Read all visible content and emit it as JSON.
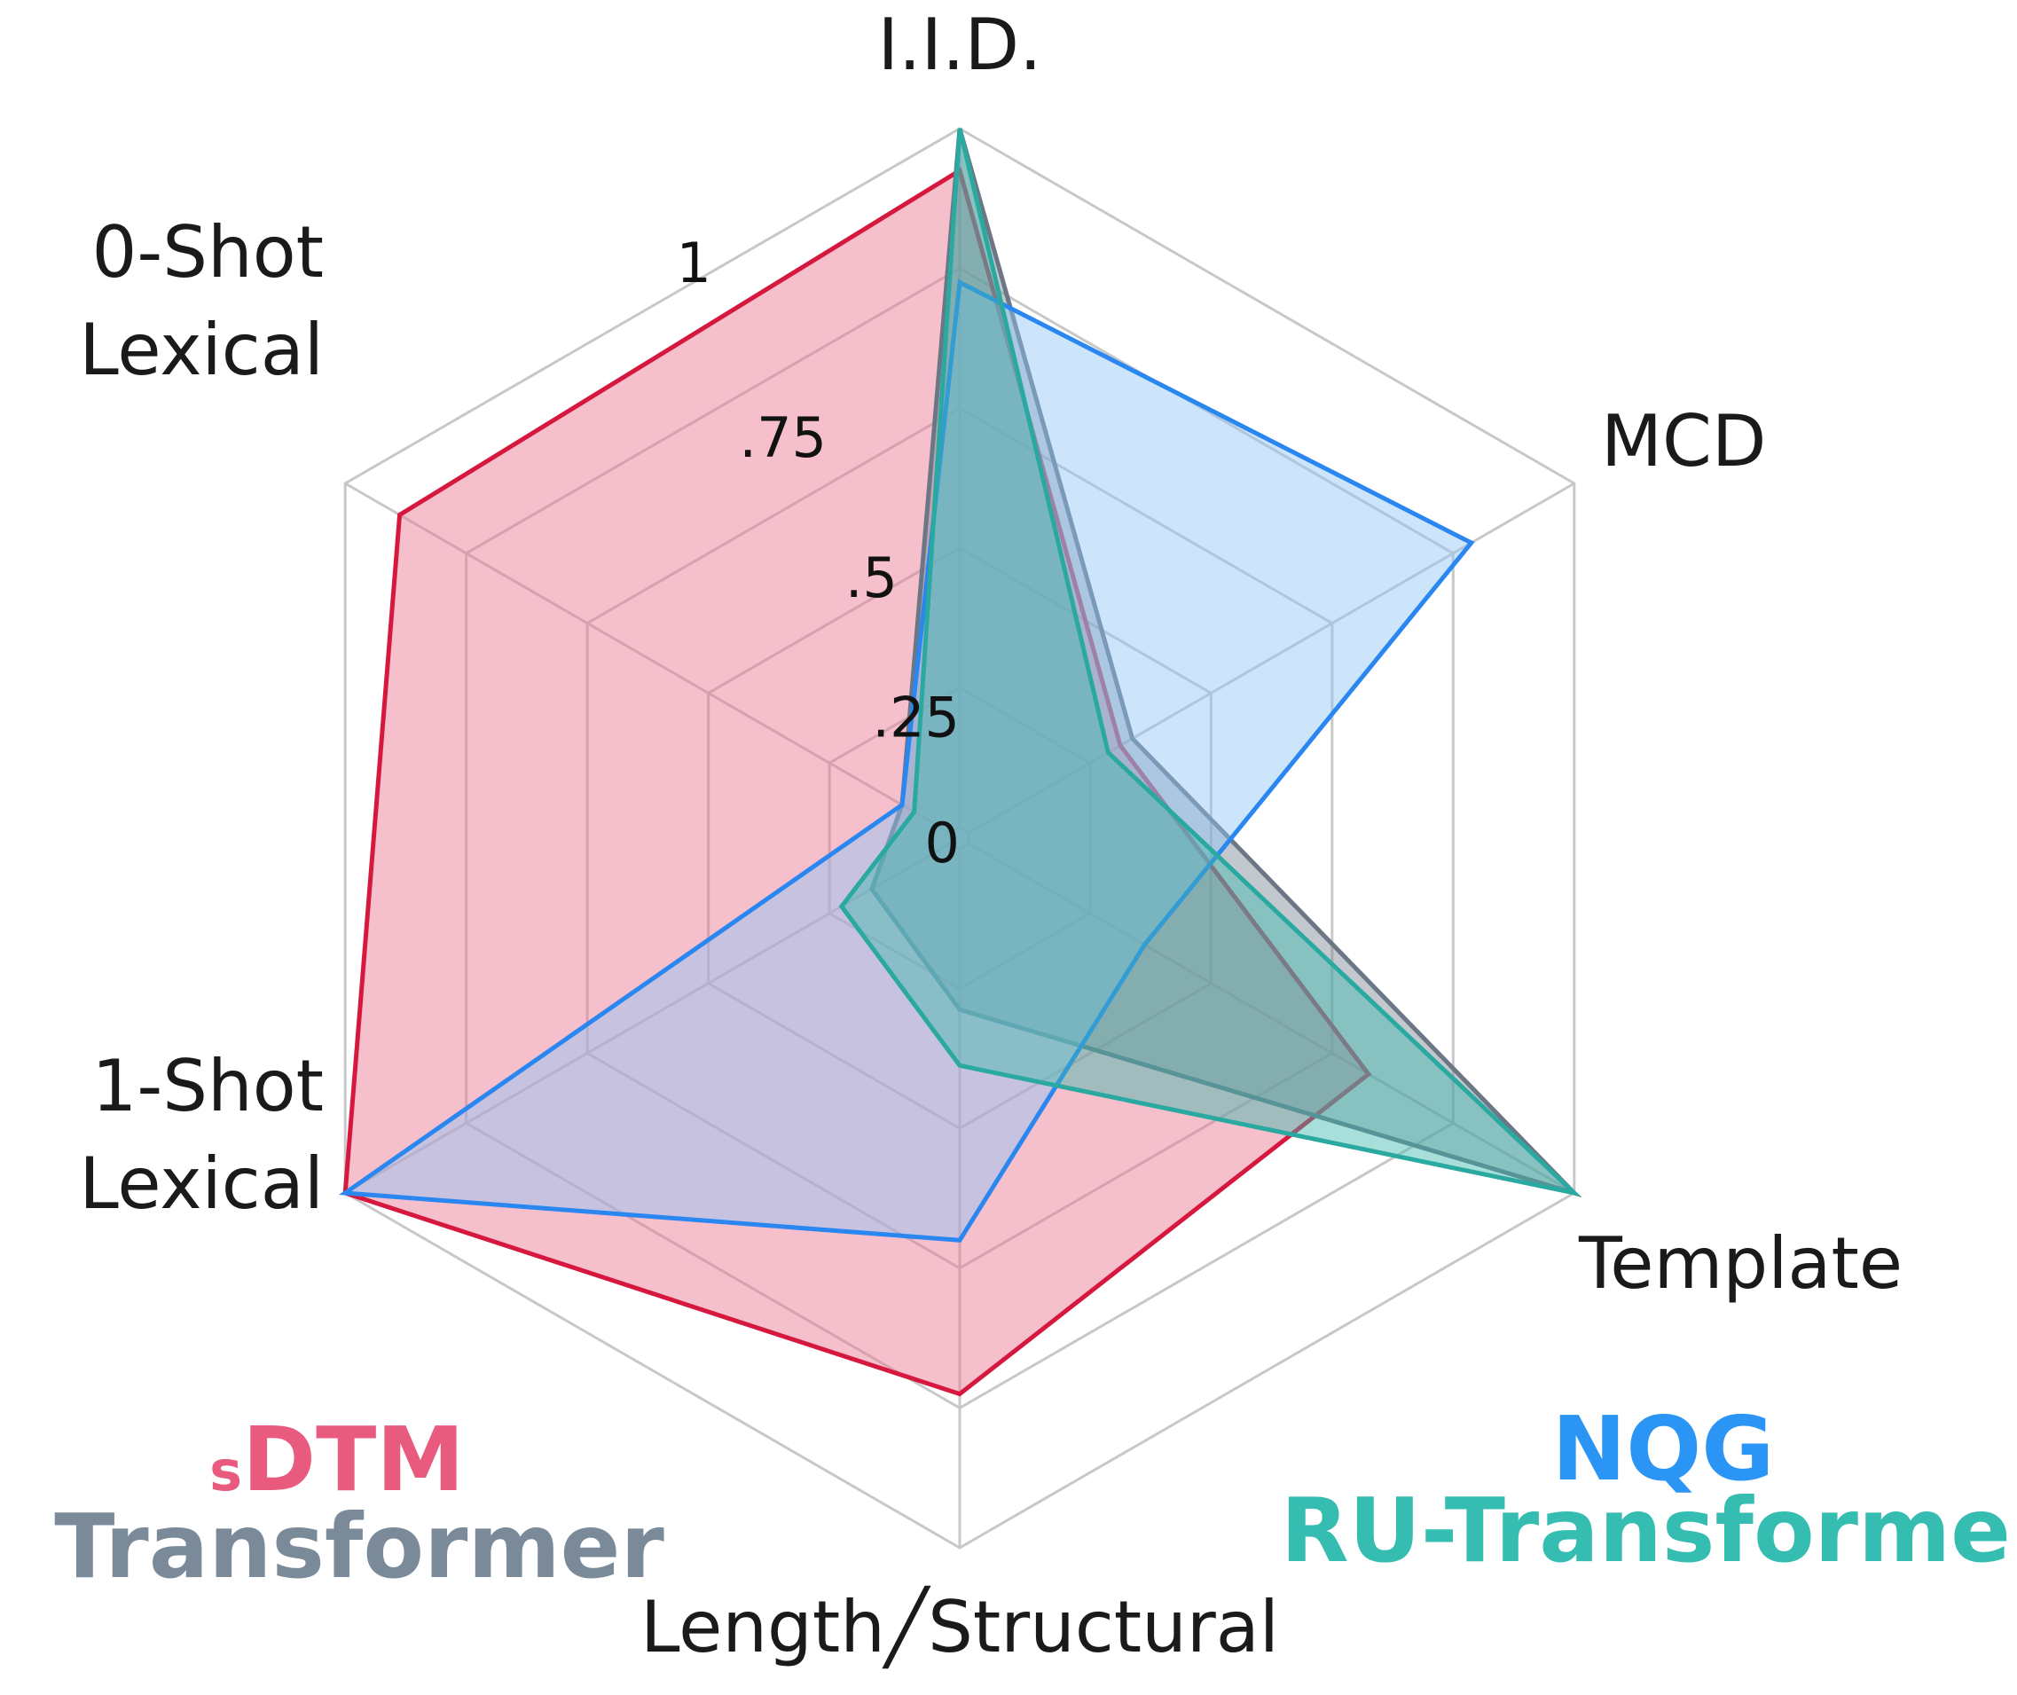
{
  "chart_data": {
    "type": "radar",
    "axes": [
      "I.I.D.",
      "MCD",
      "Template",
      "Length/Structural",
      "1-Shot Lexical",
      "0-Shot Lexical"
    ],
    "axis_label_lines": [
      [
        "I.I.D."
      ],
      [
        "MCD"
      ],
      [
        "Template"
      ],
      [
        "Length╱Structural"
      ],
      [
        "1-Shot",
        "Lexical"
      ],
      [
        "0-Shot",
        "Lexical"
      ]
    ],
    "range": [
      0,
      1
    ],
    "ticks": [
      0,
      0.25,
      0.5,
      0.75,
      1
    ],
    "tick_labels": [
      "0",
      ".25",
      ".5",
      ".75",
      "1"
    ],
    "grid": true,
    "series": [
      {
        "name": "sDTM",
        "color": "#d6183f",
        "fill": "#e8728e",
        "values": [
          0.94,
          0.25,
          0.66,
          0.78,
          1.0,
          0.91
        ]
      },
      {
        "name": "Transformer",
        "color": "#6b7785",
        "fill": "#7a8594",
        "values": [
          1.0,
          0.27,
          1.0,
          0.23,
          0.13,
          0.08
        ]
      },
      {
        "name": "NQG",
        "color": "#2a86f0",
        "fill": "#8ec5f7",
        "values": [
          0.78,
          0.83,
          0.29,
          0.56,
          1.0,
          0.08
        ]
      },
      {
        "name": "RU-Transformer",
        "color": "#2aa9a0",
        "fill": "#3fb8ae",
        "values": [
          1.0,
          0.23,
          1.0,
          0.31,
          0.18,
          0.06
        ]
      }
    ],
    "legend": {
      "bottom_left": [
        {
          "prefix": "s",
          "text": "DTM",
          "color": "#e85a7e"
        },
        {
          "text": "Transformer",
          "color": "#7b8a99"
        }
      ],
      "bottom_right": [
        {
          "text": "NQG",
          "color": "#2b95f5"
        },
        {
          "text": "RU-Transformer",
          "color": "#35bdb2"
        }
      ]
    }
  }
}
